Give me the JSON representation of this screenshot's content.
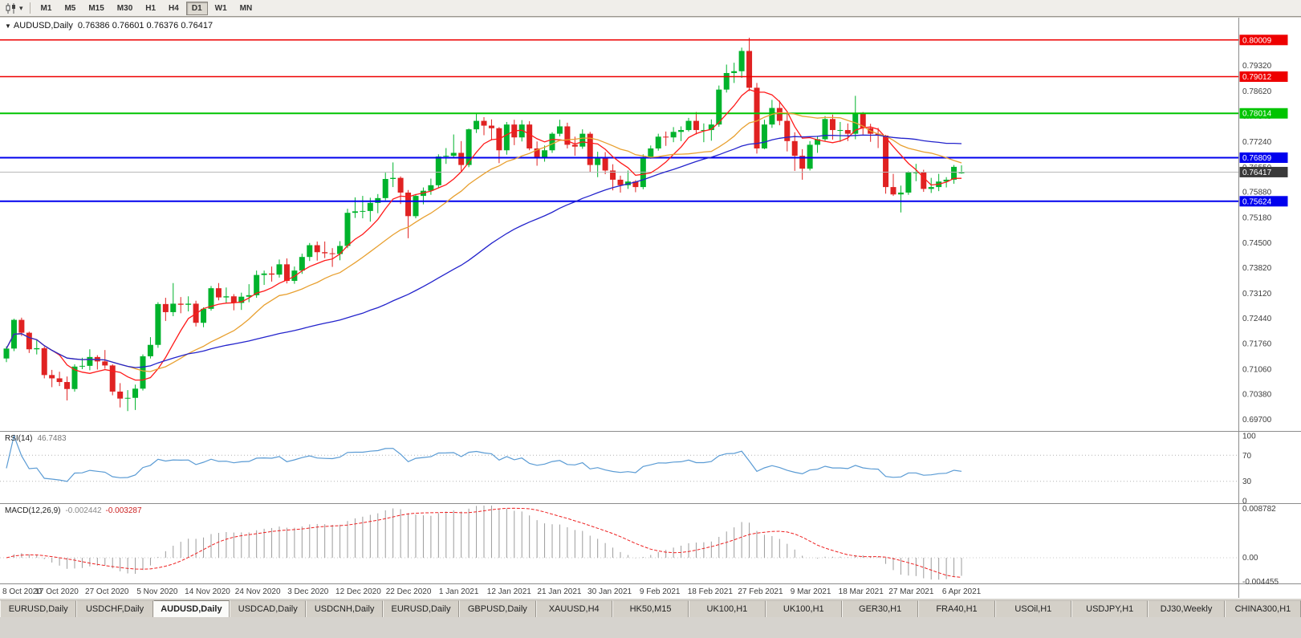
{
  "toolbar": {
    "timeframes": [
      "M1",
      "M5",
      "M15",
      "M30",
      "H1",
      "H4",
      "D1",
      "W1",
      "MN"
    ],
    "active_timeframe": "D1"
  },
  "chart": {
    "title_symbol": "AUDUSD,Daily",
    "title_ohlc": "0.76386 0.76601 0.76376 0.76417"
  },
  "price_axis_labels": [
    "0.79320",
    "0.78620",
    "0.77940",
    "0.77240",
    "0.76550",
    "0.75880",
    "0.75180",
    "0.74500",
    "0.73820",
    "0.73120",
    "0.72440",
    "0.71760",
    "0.71060",
    "0.70380",
    "0.69700"
  ],
  "levels": [
    {
      "price": 0.80009,
      "label": "0.80009",
      "color": "#ee0000",
      "width": 1.5
    },
    {
      "price": 0.79012,
      "label": "0.79012",
      "color": "#ee0000",
      "width": 1.5
    },
    {
      "price": 0.78014,
      "label": "0.78014",
      "color": "#00c400",
      "width": 2
    },
    {
      "price": 0.76809,
      "label": "0.76809",
      "color": "#0000ee",
      "width": 2
    },
    {
      "price": 0.75624,
      "label": "0.75624",
      "color": "#0000ee",
      "width": 2
    }
  ],
  "current_price": {
    "value": 0.76417,
    "label": "0.76417",
    "box_color": "#3a3a3a",
    "line_color": "#b8b8b8"
  },
  "rsi": {
    "label": "RSI(14)",
    "value_text": "46.7483",
    "period": 14,
    "axis_labels": [
      "100",
      "70",
      "30",
      "0"
    ],
    "level_lines": [
      70,
      30
    ],
    "color": "#5a9bd4"
  },
  "macd": {
    "label": "MACD(12,26,9)",
    "value_main": "-0.002442",
    "value_signal": "-0.003287",
    "axis_top": "0.008782",
    "axis_zero": "0.00",
    "axis_bottom": "-0.004455",
    "histogram_color": "#9c9c9c",
    "signal_color": "#ee2222"
  },
  "date_axis": [
    "8 Oct 2020",
    "17 Oct 2020",
    "27 Oct 2020",
    "5 Nov 2020",
    "14 Nov 2020",
    "24 Nov 2020",
    "3 Dec 2020",
    "12 Dec 2020",
    "22 Dec 2020",
    "1 Jan 2021",
    "12 Jan 2021",
    "21 Jan 2021",
    "30 Jan 2021",
    "9 Feb 2021",
    "18 Feb 2021",
    "27 Feb 2021",
    "9 Mar 2021",
    "18 Mar 2021",
    "27 Mar 2021",
    "6 Apr 2021"
  ],
  "bottom_tabs": [
    "EURUSD,Daily",
    "USDCHF,Daily",
    "AUDUSD,Daily",
    "USDCAD,Daily",
    "USDCNH,Daily",
    "EURUSD,Daily",
    "GBPUSD,Daily",
    "XAUUSD,H4",
    "HK50,M15",
    "UK100,H1",
    "UK100,H1",
    "GER30,H1",
    "FRA40,H1",
    "USOil,H1",
    "USDJPY,H1",
    "DJ30,Weekly",
    "CHINA300,H1"
  ],
  "active_tab_index": 2,
  "chart_data": {
    "type": "candlestick-ohlc",
    "symbol": "AUDUSD",
    "timeframe": "Daily",
    "last_bar": {
      "open": 0.76386,
      "high": 0.76601,
      "low": 0.76376,
      "close": 0.76417
    },
    "price_range": {
      "top": 0.8055,
      "bottom": 0.6938
    },
    "colors": {
      "up": "#00b32c",
      "down": "#e02222"
    },
    "overlays": [
      {
        "name": "ma-fast",
        "type": "sma",
        "period": 7,
        "color": "#ff1a1a"
      },
      {
        "name": "ma-medium",
        "type": "sma",
        "period": 17,
        "color": "#e8a030"
      },
      {
        "name": "ma-slow",
        "type": "sma",
        "period": 48,
        "color": "#2323cc"
      }
    ],
    "candles_ohlc": [
      [
        0.7135,
        0.7168,
        0.7125,
        0.7162
      ],
      [
        0.7162,
        0.7243,
        0.7155,
        0.724
      ],
      [
        0.724,
        0.7246,
        0.7196,
        0.7205
      ],
      [
        0.7205,
        0.7208,
        0.715,
        0.716
      ],
      [
        0.716,
        0.7185,
        0.7146,
        0.7163
      ],
      [
        0.7163,
        0.7167,
        0.7081,
        0.709
      ],
      [
        0.709,
        0.7104,
        0.7057,
        0.7081
      ],
      [
        0.7081,
        0.7099,
        0.706,
        0.7071
      ],
      [
        0.7071,
        0.7086,
        0.7021,
        0.7052
      ],
      [
        0.7052,
        0.7119,
        0.7045,
        0.7113
      ],
      [
        0.7113,
        0.7137,
        0.7106,
        0.7115
      ],
      [
        0.7115,
        0.716,
        0.7103,
        0.7139
      ],
      [
        0.7139,
        0.7144,
        0.7105,
        0.7127
      ],
      [
        0.7127,
        0.7158,
        0.7107,
        0.7116
      ],
      [
        0.7116,
        0.7119,
        0.7035,
        0.7045
      ],
      [
        0.7045,
        0.7068,
        0.7002,
        0.7026
      ],
      [
        0.7026,
        0.7049,
        0.6992,
        0.7028
      ],
      [
        0.7028,
        0.7064,
        0.6995,
        0.7053
      ],
      [
        0.7053,
        0.7146,
        0.7048,
        0.7141
      ],
      [
        0.7141,
        0.7193,
        0.7135,
        0.7172
      ],
      [
        0.7172,
        0.7288,
        0.7164,
        0.7283
      ],
      [
        0.7283,
        0.73,
        0.7237,
        0.7261
      ],
      [
        0.7261,
        0.734,
        0.725,
        0.7284
      ],
      [
        0.7284,
        0.7302,
        0.7258,
        0.7281
      ],
      [
        0.7281,
        0.7304,
        0.7263,
        0.7284
      ],
      [
        0.7284,
        0.7292,
        0.7222,
        0.7232
      ],
      [
        0.7232,
        0.7274,
        0.722,
        0.727
      ],
      [
        0.727,
        0.7332,
        0.7265,
        0.7326
      ],
      [
        0.7326,
        0.734,
        0.7293,
        0.7301
      ],
      [
        0.7301,
        0.7328,
        0.7285,
        0.7304
      ],
      [
        0.7304,
        0.731,
        0.7266,
        0.7286
      ],
      [
        0.7286,
        0.7314,
        0.7267,
        0.7303
      ],
      [
        0.7303,
        0.7337,
        0.7288,
        0.7307
      ],
      [
        0.7307,
        0.7374,
        0.73,
        0.7362
      ],
      [
        0.7362,
        0.7374,
        0.7335,
        0.7366
      ],
      [
        0.7366,
        0.7385,
        0.7344,
        0.7363
      ],
      [
        0.7363,
        0.7404,
        0.7355,
        0.7391
      ],
      [
        0.7391,
        0.7407,
        0.7339,
        0.7346
      ],
      [
        0.7346,
        0.7385,
        0.7338,
        0.7374
      ],
      [
        0.7374,
        0.742,
        0.7365,
        0.7411
      ],
      [
        0.7411,
        0.7449,
        0.74,
        0.7443
      ],
      [
        0.7443,
        0.7453,
        0.7401,
        0.7424
      ],
      [
        0.7424,
        0.7453,
        0.7408,
        0.7421
      ],
      [
        0.7421,
        0.7435,
        0.7384,
        0.7419
      ],
      [
        0.7419,
        0.7454,
        0.7402,
        0.7441
      ],
      [
        0.7441,
        0.7542,
        0.7435,
        0.7531
      ],
      [
        0.7531,
        0.7573,
        0.7517,
        0.7535
      ],
      [
        0.7535,
        0.7577,
        0.7516,
        0.7536
      ],
      [
        0.7536,
        0.7572,
        0.7507,
        0.7558
      ],
      [
        0.7558,
        0.7582,
        0.753,
        0.7571
      ],
      [
        0.7571,
        0.764,
        0.7565,
        0.7623
      ],
      [
        0.7623,
        0.7668,
        0.7601,
        0.7626
      ],
      [
        0.7626,
        0.763,
        0.7555,
        0.7586
      ],
      [
        0.7586,
        0.7593,
        0.7462,
        0.7522
      ],
      [
        0.7522,
        0.7582,
        0.7516,
        0.7577
      ],
      [
        0.7577,
        0.76,
        0.7554,
        0.7591
      ],
      [
        0.7591,
        0.7624,
        0.758,
        0.7606
      ],
      [
        0.7606,
        0.769,
        0.76,
        0.7684
      ],
      [
        0.7684,
        0.7707,
        0.7664,
        0.7686
      ],
      [
        0.7686,
        0.7744,
        0.7682,
        0.7694
      ],
      [
        0.7694,
        0.7726,
        0.7642,
        0.7661
      ],
      [
        0.7661,
        0.776,
        0.7655,
        0.7758
      ],
      [
        0.7758,
        0.78,
        0.7748,
        0.7781
      ],
      [
        0.7781,
        0.7791,
        0.7742,
        0.7768
      ],
      [
        0.7768,
        0.7785,
        0.7728,
        0.7761
      ],
      [
        0.7761,
        0.7764,
        0.7666,
        0.7701
      ],
      [
        0.7701,
        0.7778,
        0.7689,
        0.7771
      ],
      [
        0.7771,
        0.7784,
        0.7715,
        0.7736
      ],
      [
        0.7736,
        0.7783,
        0.7725,
        0.7771
      ],
      [
        0.7771,
        0.778,
        0.7701,
        0.7706
      ],
      [
        0.7706,
        0.7725,
        0.7659,
        0.7681
      ],
      [
        0.7681,
        0.7714,
        0.767,
        0.7701
      ],
      [
        0.7701,
        0.775,
        0.7694,
        0.7746
      ],
      [
        0.7746,
        0.7784,
        0.7739,
        0.7766
      ],
      [
        0.7766,
        0.7776,
        0.7706,
        0.7716
      ],
      [
        0.7716,
        0.7738,
        0.7686,
        0.7711
      ],
      [
        0.7711,
        0.7758,
        0.7705,
        0.7746
      ],
      [
        0.7746,
        0.7751,
        0.7642,
        0.7661
      ],
      [
        0.7661,
        0.7697,
        0.7628,
        0.7681
      ],
      [
        0.7681,
        0.7696,
        0.7636,
        0.7646
      ],
      [
        0.7646,
        0.7663,
        0.7592,
        0.7621
      ],
      [
        0.7621,
        0.7632,
        0.7586,
        0.7606
      ],
      [
        0.7606,
        0.7646,
        0.7596,
        0.7616
      ],
      [
        0.7616,
        0.762,
        0.7587,
        0.7601
      ],
      [
        0.7601,
        0.769,
        0.7595,
        0.7681
      ],
      [
        0.7681,
        0.7714,
        0.7678,
        0.7706
      ],
      [
        0.7706,
        0.7746,
        0.77,
        0.7738
      ],
      [
        0.7738,
        0.7752,
        0.7713,
        0.7736
      ],
      [
        0.7736,
        0.7764,
        0.7723,
        0.7751
      ],
      [
        0.7751,
        0.7766,
        0.7726,
        0.7756
      ],
      [
        0.7756,
        0.7789,
        0.7752,
        0.7781
      ],
      [
        0.7781,
        0.7805,
        0.7744,
        0.7756
      ],
      [
        0.7756,
        0.7774,
        0.7723,
        0.7756
      ],
      [
        0.7756,
        0.7785,
        0.7727,
        0.7771
      ],
      [
        0.7771,
        0.7877,
        0.7765,
        0.7866
      ],
      [
        0.7866,
        0.7934,
        0.7858,
        0.7911
      ],
      [
        0.7911,
        0.7939,
        0.7884,
        0.7916
      ],
      [
        0.7916,
        0.798,
        0.7898,
        0.7971
      ],
      [
        0.7971,
        0.8007,
        0.7862,
        0.7871
      ],
      [
        0.7871,
        0.7884,
        0.7692,
        0.7706
      ],
      [
        0.7706,
        0.7784,
        0.7704,
        0.7771
      ],
      [
        0.7771,
        0.7838,
        0.7762,
        0.7816
      ],
      [
        0.7816,
        0.7836,
        0.7769,
        0.7781
      ],
      [
        0.7781,
        0.7805,
        0.7698,
        0.7726
      ],
      [
        0.7726,
        0.775,
        0.7645,
        0.7686
      ],
      [
        0.7686,
        0.7704,
        0.7621,
        0.7651
      ],
      [
        0.7651,
        0.7726,
        0.7646,
        0.7716
      ],
      [
        0.7716,
        0.774,
        0.7694,
        0.7731
      ],
      [
        0.7731,
        0.7794,
        0.7725,
        0.7786
      ],
      [
        0.7786,
        0.7798,
        0.773,
        0.7756
      ],
      [
        0.7756,
        0.7778,
        0.7724,
        0.7756
      ],
      [
        0.7756,
        0.7774,
        0.7726,
        0.7746
      ],
      [
        0.7746,
        0.7849,
        0.7731,
        0.78
      ],
      [
        0.78,
        0.7805,
        0.7744,
        0.7761
      ],
      [
        0.7761,
        0.7773,
        0.7724,
        0.7746
      ],
      [
        0.7746,
        0.7762,
        0.7707,
        0.7741
      ],
      [
        0.7741,
        0.7743,
        0.7583,
        0.7601
      ],
      [
        0.7601,
        0.7637,
        0.7577,
        0.7581
      ],
      [
        0.7581,
        0.7605,
        0.7532,
        0.7586
      ],
      [
        0.7586,
        0.7644,
        0.758,
        0.7641
      ],
      [
        0.7641,
        0.7664,
        0.7617,
        0.7641
      ],
      [
        0.7641,
        0.7648,
        0.7588,
        0.7596
      ],
      [
        0.7596,
        0.7626,
        0.7585,
        0.7601
      ],
      [
        0.7601,
        0.7637,
        0.759,
        0.7616
      ],
      [
        0.7616,
        0.7628,
        0.76,
        0.7621
      ],
      [
        0.7621,
        0.7661,
        0.761,
        0.7656
      ],
      [
        0.76386,
        0.76601,
        0.76376,
        0.76417
      ]
    ]
  }
}
